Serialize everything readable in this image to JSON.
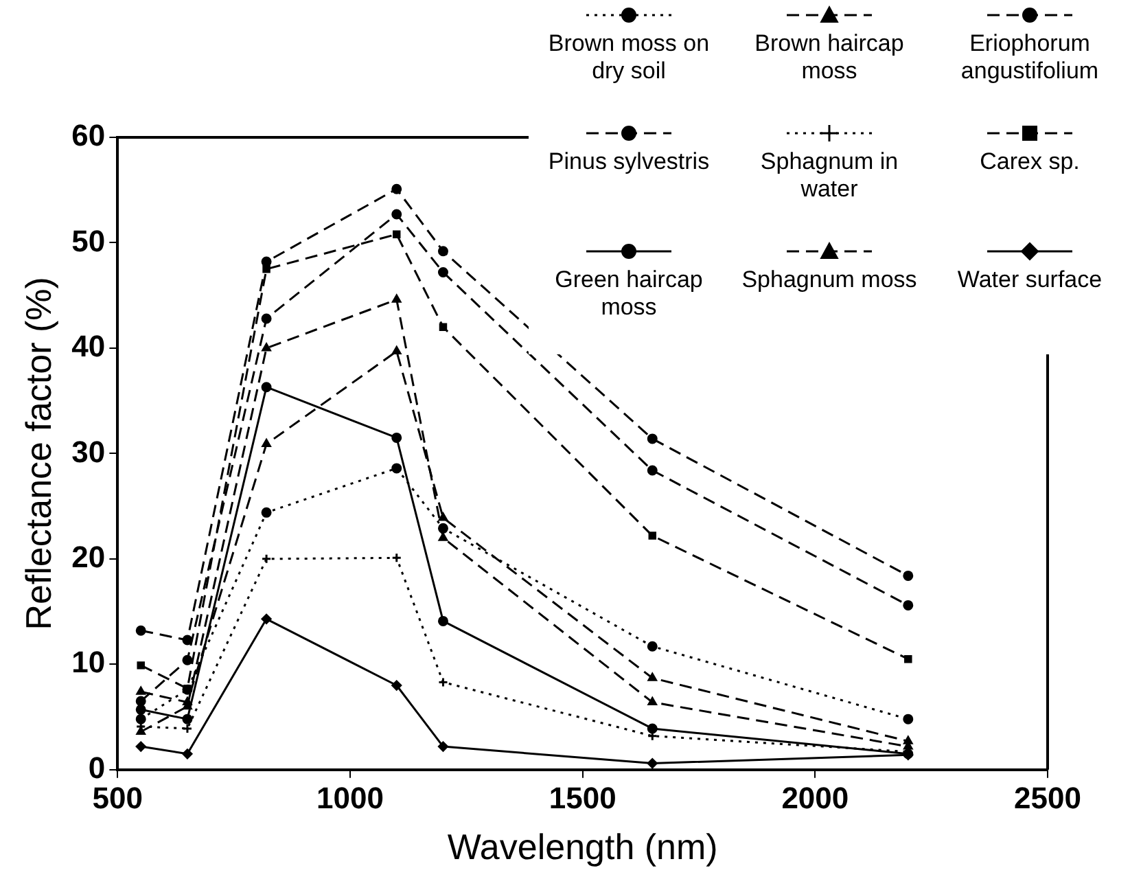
{
  "chart_data": {
    "type": "line",
    "xlabel": "Wavelength (nm)",
    "ylabel": "Reflectance factor (%)",
    "x": [
      550,
      650,
      820,
      1100,
      1200,
      1650,
      2200
    ],
    "xlim": [
      500,
      2500
    ],
    "xticks": [
      500,
      1000,
      1500,
      2000,
      2500
    ],
    "ylim": [
      0,
      60
    ],
    "yticks": [
      0,
      10,
      20,
      30,
      40,
      50,
      60
    ],
    "grid": false,
    "legend": "top right",
    "series": [
      {
        "name": "Brown moss on dry soil",
        "color": "#000000",
        "marker": "circle",
        "line_style": "dotted",
        "values": [
          4.8,
          7.6,
          24.4,
          28.6,
          22.9,
          11.7,
          4.8
        ]
      },
      {
        "name": "Brown haircap moss",
        "color": "#000000",
        "marker": "triangle",
        "line_style": "dashed",
        "values": [
          7.4,
          6.4,
          30.9,
          39.7,
          23.9,
          8.7,
          2.7
        ]
      },
      {
        "name": "Eriophorum angustifolium",
        "color": "#000000",
        "marker": "circle",
        "line_style": "dashed",
        "values": [
          6.5,
          10.4,
          42.8,
          52.7,
          47.2,
          28.4,
          15.6
        ]
      },
      {
        "name": "Pinus sylvestris",
        "color": "#000000",
        "marker": "circle",
        "line_style": "dashed",
        "values": [
          13.2,
          12.3,
          48.2,
          55.1,
          49.2,
          31.4,
          18.4
        ]
      },
      {
        "name": "Sphagnum in water",
        "color": "#000000",
        "marker": "cross",
        "line_style": "dotted",
        "values": [
          4.1,
          3.9,
          20.0,
          20.1,
          8.3,
          3.2,
          1.7
        ]
      },
      {
        "name": "Carex sp.",
        "color": "#000000",
        "marker": "square",
        "line_style": "dashed",
        "values": [
          9.9,
          7.7,
          47.5,
          50.8,
          42.0,
          22.2,
          10.5
        ]
      },
      {
        "name": "Green haircap moss",
        "color": "#000000",
        "marker": "circle",
        "line_style": "solid",
        "values": [
          5.7,
          4.8,
          36.3,
          31.5,
          14.1,
          3.9,
          1.5
        ]
      },
      {
        "name": "Sphagnum moss",
        "color": "#000000",
        "marker": "triangle",
        "line_style": "dashed",
        "values": [
          3.6,
          6.0,
          40.0,
          44.6,
          22.0,
          6.4,
          2.2
        ]
      },
      {
        "name": "Water surface",
        "color": "#000000",
        "marker": "diamond",
        "line_style": "solid",
        "values": [
          2.2,
          1.5,
          14.3,
          8.0,
          2.2,
          0.6,
          1.4
        ]
      }
    ]
  }
}
